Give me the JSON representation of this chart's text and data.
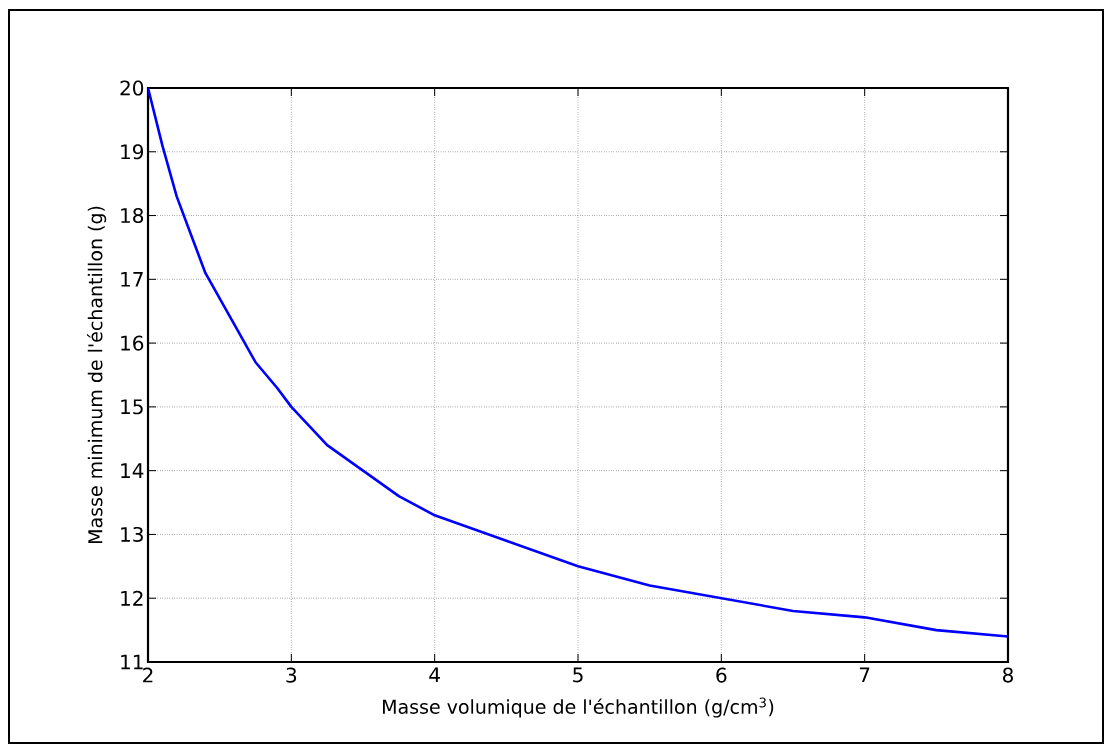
{
  "chart_data": {
    "type": "line",
    "xlabel": "Masse volumique de l'échantillon (g/cm$^{3}$)",
    "ylabel": "Masse minimum de l'échantillon (g)",
    "x": [
      2,
      2.1,
      2.2,
      2.3,
      2.4,
      2.5,
      2.6,
      2.75,
      2.9,
      3,
      3.25,
      3.5,
      3.75,
      4,
      4.25,
      4.5,
      5,
      5.5,
      6,
      6.5,
      7,
      7.5,
      8
    ],
    "series": [
      {
        "color": "#0000ff",
        "values": [
          20,
          19.1,
          18.3,
          17.7,
          17.1,
          16.7,
          16.3,
          15.7,
          15.3,
          15,
          14.4,
          14,
          13.6,
          13.3,
          13.1,
          12.9,
          12.5,
          12.2,
          12,
          11.8,
          11.7,
          11.5,
          11.4
        ]
      }
    ],
    "xlim": [
      2,
      8
    ],
    "ylim": [
      11,
      20
    ],
    "xticks": [
      2,
      3,
      4,
      5,
      6,
      7,
      8
    ],
    "yticks": [
      11,
      12,
      13,
      14,
      15,
      16,
      17,
      18,
      19,
      20
    ],
    "grid": true,
    "marker": "none",
    "line_style": "solid"
  }
}
